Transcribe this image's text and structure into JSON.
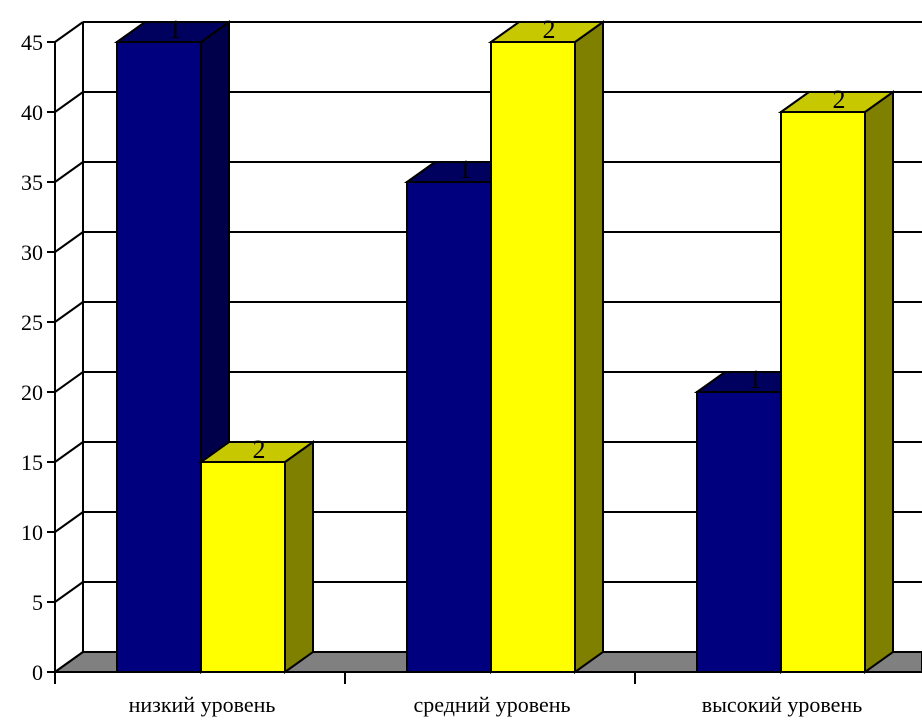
{
  "chart_data": {
    "type": "bar",
    "categories": [
      "низкий уровень",
      "средний уровень",
      "высокий уровень"
    ],
    "series": [
      {
        "label": "1",
        "values": [
          45,
          35,
          20
        ],
        "color": "#00007f",
        "side_color": "#00004a",
        "top_color": "#00005e"
      },
      {
        "label": "2",
        "values": [
          15,
          45,
          40
        ],
        "color": "#ffff00",
        "side_color": "#808000",
        "top_color": "#c8c800"
      }
    ],
    "ylim": [
      0,
      45
    ],
    "yticks": [
      "0",
      "5",
      "10",
      "15",
      "20",
      "25",
      "30",
      "35",
      "40",
      "45"
    ],
    "grid": true,
    "floor_color": "#808080"
  }
}
